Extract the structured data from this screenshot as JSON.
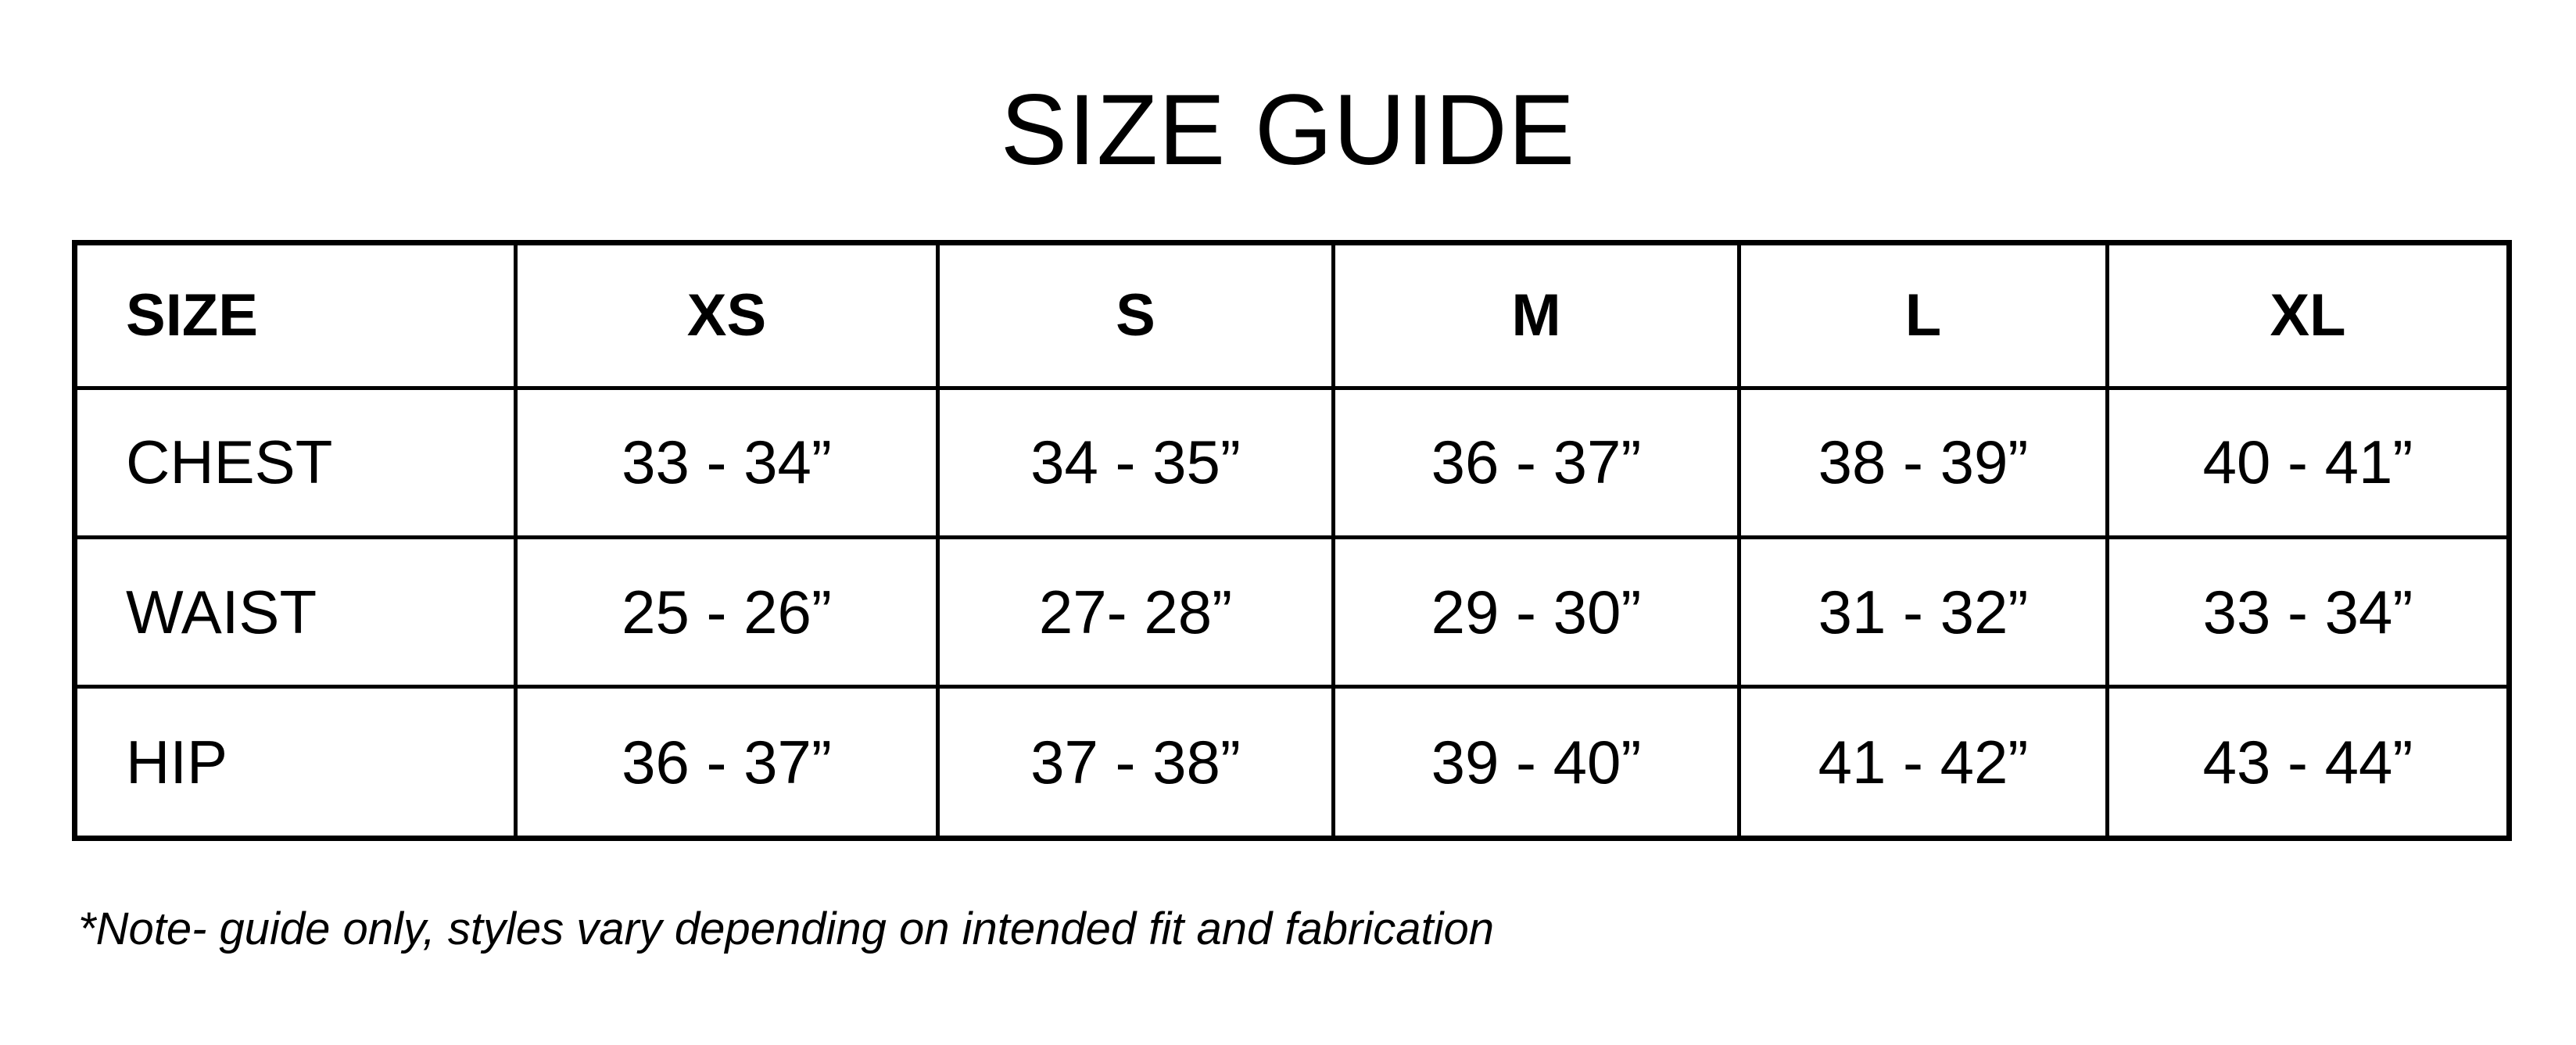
{
  "title": "SIZE GUIDE",
  "table": {
    "header": [
      "SIZE",
      "XS",
      "S",
      "M",
      "L",
      "XL"
    ],
    "rows": [
      {
        "label": "CHEST",
        "values": [
          "33 - 34”",
          "34 - 35”",
          "36 - 37”",
          "38 - 39”",
          "40 - 41”"
        ]
      },
      {
        "label": "WAIST",
        "values": [
          "25 - 26”",
          "27- 28”",
          "29 - 30”",
          "31 - 32”",
          "33 - 34”"
        ]
      },
      {
        "label": "HIP",
        "values": [
          "36 - 37”",
          "37 - 38”",
          "39 - 40”",
          "41 - 42”",
          "43 - 44”"
        ]
      }
    ]
  },
  "note": "*Note- guide only, styles vary depending on intended fit and fabrication"
}
